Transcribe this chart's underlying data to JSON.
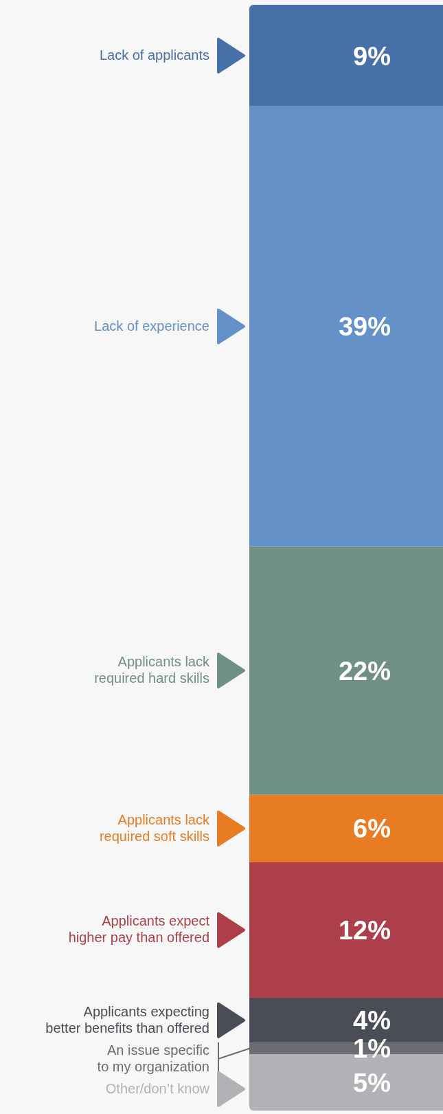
{
  "chart_data": {
    "type": "bar",
    "stacked": true,
    "legend": "left",
    "categories": [
      null
    ],
    "series": [
      {
        "name": "Other/don’t know",
        "color": "#b1b2b5",
        "values": [
          5
        ],
        "value_labels": [
          "5%"
        ]
      },
      {
        "name": "An issue specific to my organization",
        "color": "#6a6c72",
        "values": [
          1
        ],
        "value_labels": [
          "1%"
        ]
      },
      {
        "name": "Applicants expecting better benefits than offered",
        "color": "#4a4d55",
        "values": [
          4
        ],
        "value_labels": [
          "4%"
        ]
      },
      {
        "name": "Applicants expect higher pay than offered",
        "color": "#ac3f4a",
        "values": [
          12
        ],
        "value_labels": [
          "12%"
        ]
      },
      {
        "name": "Applicants lack required soft skills",
        "color": "#e87c23",
        "values": [
          6
        ],
        "value_labels": [
          "6%"
        ]
      },
      {
        "name": "Applicants lack required hard skills",
        "color": "#6f9082",
        "values": [
          22
        ],
        "value_labels": [
          "22%"
        ]
      },
      {
        "name": "Lack of experience",
        "color": "#6491c7",
        "values": [
          39
        ],
        "value_labels": [
          "39%"
        ]
      },
      {
        "name": "Lack of applicants",
        "color": "#4870a8",
        "values": [
          9
        ],
        "value_labels": [
          "9%"
        ]
      }
    ]
  }
}
